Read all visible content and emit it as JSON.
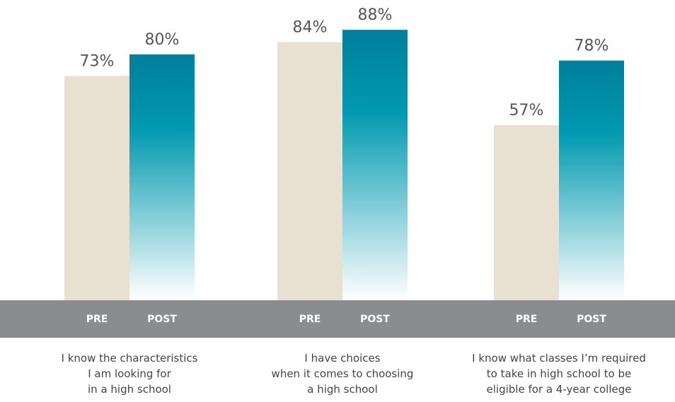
{
  "chart_data": {
    "type": "bar",
    "categories": [
      [
        "I know the characteristics",
        "I am looking for",
        "in a high school"
      ],
      [
        "I have choices",
        "when it comes to choosing",
        "a high school"
      ],
      [
        "I know what classes I’m required",
        "to take in high school to be",
        "eligible for a 4-year college"
      ]
    ],
    "series": [
      {
        "name": "PRE",
        "color": "#e8e0d0",
        "values": [
          73,
          84,
          57
        ],
        "value_labels": [
          "73%",
          "84%",
          "57%"
        ]
      },
      {
        "name": "POST",
        "color": "#007f9b",
        "values": [
          80,
          88,
          78
        ],
        "value_labels": [
          "80%",
          "88%",
          "78%"
        ]
      }
    ],
    "ylim": [
      0,
      100
    ]
  }
}
